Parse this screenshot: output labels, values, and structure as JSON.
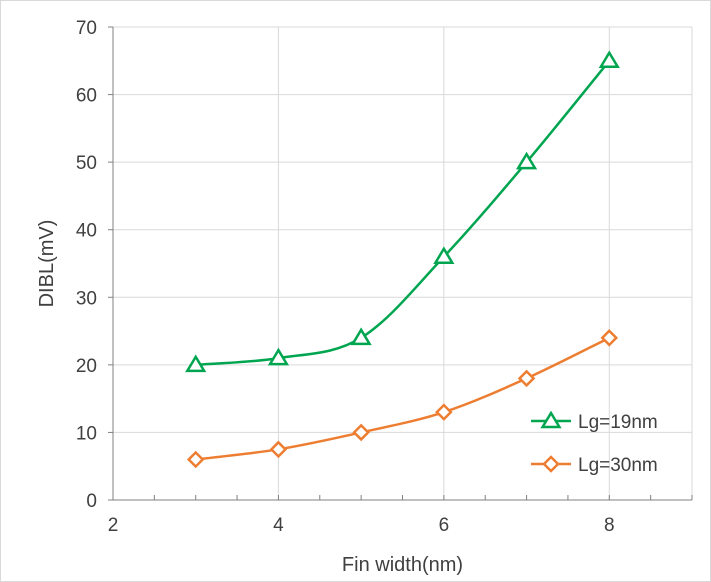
{
  "chart_data": {
    "type": "line",
    "title": "",
    "xlabel": "Fin width(nm)",
    "ylabel": "DIBL(mV)",
    "xlim": [
      2,
      9
    ],
    "ylim": [
      0,
      70
    ],
    "x_ticks": [
      2,
      4,
      6,
      8
    ],
    "y_ticks": [
      0,
      10,
      20,
      30,
      40,
      50,
      60,
      70
    ],
    "x_minor_step": 0.5,
    "grid": true,
    "legend_position": "bottom-right",
    "series": [
      {
        "name": "Lg=19nm",
        "color": "#00a550",
        "marker": "triangle",
        "x": [
          3,
          4,
          5,
          6,
          7,
          8
        ],
        "y": [
          20,
          21,
          24,
          36,
          50,
          65
        ]
      },
      {
        "name": "Lg=30nm",
        "color": "#ed7d31",
        "marker": "diamond",
        "x": [
          3,
          4,
          5,
          6,
          7,
          8
        ],
        "y": [
          6,
          7.5,
          10,
          13,
          18,
          24
        ]
      }
    ]
  }
}
